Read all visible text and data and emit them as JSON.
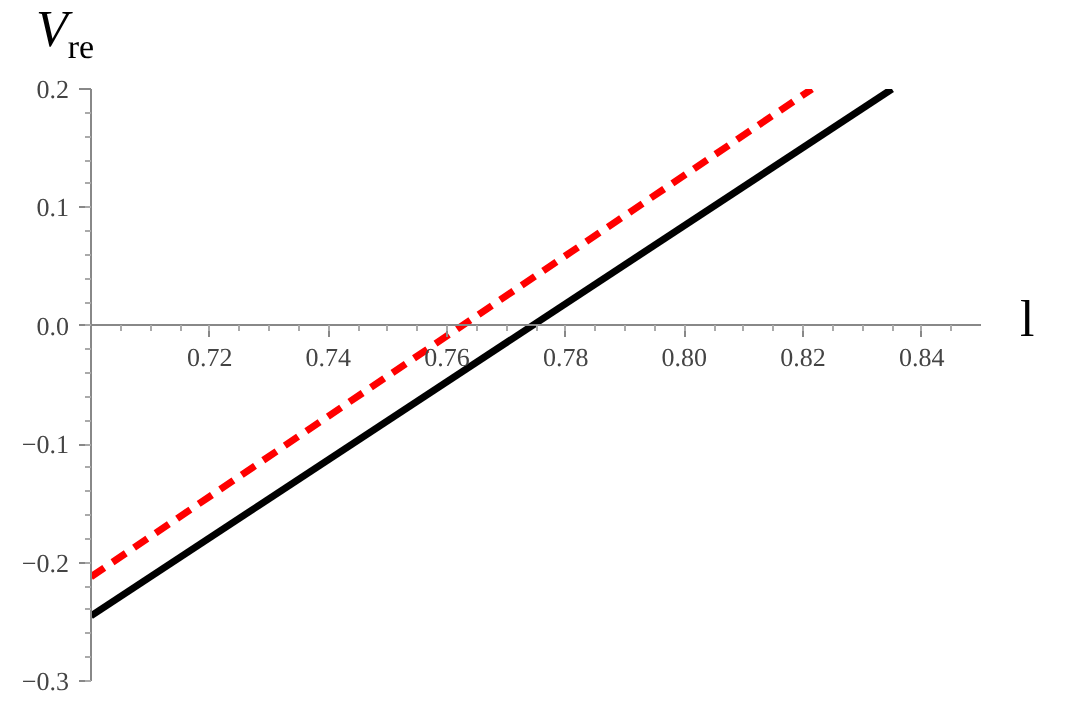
{
  "chart_data": {
    "type": "line",
    "xlabel": "l",
    "ylabel": "V$_{re}$",
    "xlim": [
      0.7,
      0.85
    ],
    "ylim": [
      -0.3,
      0.2
    ],
    "xticks": [
      {
        "value": 0.72,
        "label": "0.72"
      },
      {
        "value": 0.74,
        "label": "0.74"
      },
      {
        "value": 0.76,
        "label": "0.76"
      },
      {
        "value": 0.78,
        "label": "0.78"
      },
      {
        "value": 0.8,
        "label": "0.80"
      },
      {
        "value": 0.82,
        "label": "0.82"
      },
      {
        "value": 0.84,
        "label": "0.84"
      }
    ],
    "yticks": [
      {
        "value": -0.3,
        "label": "−0.3"
      },
      {
        "value": -0.2,
        "label": "−0.2"
      },
      {
        "value": -0.1,
        "label": "−0.1"
      },
      {
        "value": 0,
        "label": "0.0"
      },
      {
        "value": 0.1,
        "label": "0.1"
      },
      {
        "value": 0.2,
        "label": "0.2"
      }
    ],
    "grid": false,
    "series": [
      {
        "color": "#000000",
        "line_style": "solid",
        "x": [
          0.7,
          0.835
        ],
        "values": [
          -0.245,
          0.2
        ]
      },
      {
        "color": "#ff0000",
        "line_style": "dashed",
        "x": [
          0.7,
          0.8215
        ],
        "values": [
          -0.212,
          0.2
        ]
      }
    ]
  }
}
